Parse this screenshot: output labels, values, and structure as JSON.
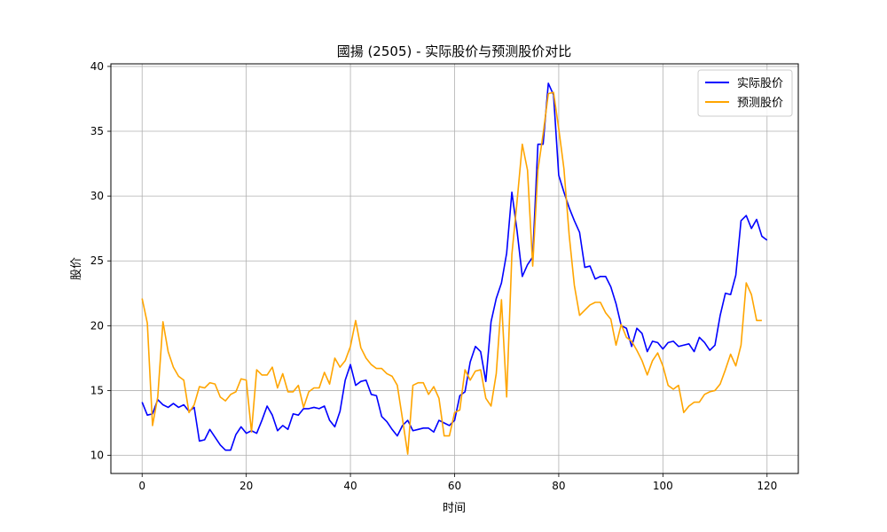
{
  "chart_data": {
    "type": "line",
    "title": "國揚 (2505) - 实际股价与预测股价对比",
    "xlabel": "时间",
    "ylabel": "股价",
    "xlim": [
      -6,
      126
    ],
    "ylim": [
      8.6,
      40.2
    ],
    "xticks": [
      0,
      20,
      40,
      60,
      80,
      100,
      120
    ],
    "yticks": [
      10,
      15,
      20,
      25,
      30,
      35,
      40
    ],
    "grid": true,
    "legend_position": "top-right",
    "series": [
      {
        "name": "实际股价",
        "color": "#0000ff",
        "x_start": 0,
        "values": [
          14.1,
          13.1,
          13.2,
          14.3,
          13.9,
          13.7,
          14.0,
          13.7,
          13.9,
          13.4,
          13.7,
          11.1,
          11.2,
          12.0,
          11.4,
          10.8,
          10.4,
          10.4,
          11.6,
          12.2,
          11.7,
          11.9,
          11.7,
          12.7,
          13.8,
          13.1,
          11.9,
          12.3,
          12.0,
          13.2,
          13.1,
          13.6,
          13.6,
          13.7,
          13.6,
          13.8,
          12.7,
          12.2,
          13.4,
          15.8,
          17.0,
          15.4,
          15.7,
          15.8,
          14.7,
          14.6,
          13.0,
          12.6,
          12.0,
          11.5,
          12.3,
          12.7,
          11.9,
          12.0,
          12.1,
          12.1,
          11.8,
          12.7,
          12.5,
          12.3,
          12.7,
          14.6,
          14.9,
          17.2,
          18.4,
          18.0,
          15.7,
          20.3,
          22.1,
          23.3,
          25.6,
          30.3,
          27.3,
          23.8,
          24.7,
          25.3,
          34.0,
          34.0,
          38.7,
          37.8,
          31.6,
          30.3,
          29.1,
          28.1,
          27.2,
          24.5,
          24.6,
          23.6,
          23.8,
          23.8,
          23.0,
          21.7,
          20.0,
          19.8,
          18.4,
          19.8,
          19.4,
          18.0,
          18.8,
          18.7,
          18.2,
          18.7,
          18.8,
          18.4,
          18.5,
          18.6,
          18.0,
          19.1,
          18.7,
          18.1,
          18.5,
          20.8,
          22.5,
          22.4,
          23.9,
          28.1,
          28.5,
          27.5,
          28.2,
          26.9,
          26.6
        ]
      },
      {
        "name": "预测股价",
        "color": "#ffa500",
        "x_start": 0,
        "values": [
          22.1,
          20.2,
          12.3,
          14.5,
          20.3,
          18.0,
          16.8,
          16.1,
          15.8,
          13.3,
          13.9,
          15.3,
          15.2,
          15.6,
          15.5,
          14.5,
          14.2,
          14.7,
          14.9,
          15.9,
          15.8,
          11.8,
          16.6,
          16.2,
          16.2,
          16.8,
          15.2,
          16.3,
          14.9,
          14.9,
          15.4,
          13.7,
          14.9,
          15.2,
          15.2,
          16.4,
          15.5,
          17.5,
          16.8,
          17.3,
          18.4,
          20.4,
          18.3,
          17.5,
          17.0,
          16.7,
          16.7,
          16.3,
          16.1,
          15.4,
          12.8,
          10.1,
          15.4,
          15.6,
          15.6,
          14.7,
          15.3,
          14.4,
          11.5,
          11.5,
          13.3,
          13.5,
          16.6,
          15.8,
          16.5,
          16.6,
          14.4,
          13.8,
          16.3,
          22.0,
          14.5,
          25.5,
          29.6,
          34.0,
          32.0,
          24.6,
          32.0,
          34.8,
          37.9,
          38.0,
          35.2,
          32.1,
          27.0,
          23.1,
          20.8,
          21.2,
          21.6,
          21.8,
          21.8,
          21.0,
          20.5,
          18.5,
          20.1,
          19.1,
          18.8,
          18.1,
          17.3,
          16.2,
          17.3,
          17.9,
          16.9,
          15.4,
          15.1,
          15.4,
          13.3,
          13.8,
          14.1,
          14.1,
          14.7,
          14.9,
          15.0,
          15.5,
          16.6,
          17.8,
          16.9,
          18.5,
          23.3,
          22.4,
          20.4,
          20.4
        ]
      }
    ]
  }
}
